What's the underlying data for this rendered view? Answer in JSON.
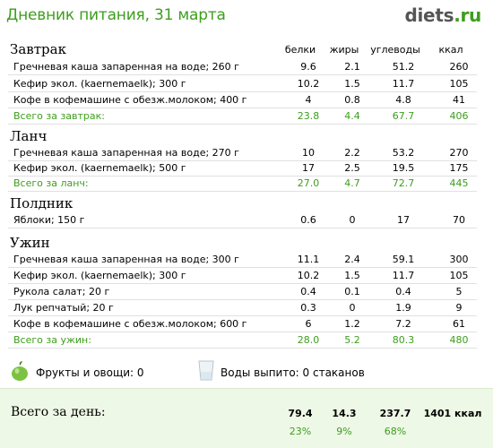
{
  "header": {
    "title": "Дневник питания, 31 марта",
    "brand_part1": "diets",
    "brand_part2": ".ru"
  },
  "columns": {
    "protein": "белки",
    "fat": "жиры",
    "carbs": "углеводы",
    "kcal": "ккал"
  },
  "meals": [
    {
      "title": "Завтрак",
      "items": [
        {
          "name": "Гречневая каша запаренная на воде; 260 г",
          "protein": "9.6",
          "fat": "2.1",
          "carbs": "51.2",
          "kcal": "260"
        },
        {
          "name": "Кефир экол. (kaernemaelk); 300 г",
          "protein": "10.2",
          "fat": "1.5",
          "carbs": "11.7",
          "kcal": "105"
        },
        {
          "name": "Кофе в кофемашине с обезж.молоком; 400 г",
          "protein": "4",
          "fat": "0.8",
          "carbs": "4.8",
          "kcal": "41"
        }
      ],
      "total": {
        "name": "Всего за завтрак:",
        "protein": "23.8",
        "fat": "4.4",
        "carbs": "67.7",
        "kcal": "406"
      }
    },
    {
      "title": "Ланч",
      "items": [
        {
          "name": "Гречневая каша запаренная на воде; 270 г",
          "protein": "10",
          "fat": "2.2",
          "carbs": "53.2",
          "kcal": "270"
        },
        {
          "name": "Кефир экол. (kaernemaelk); 500 г",
          "protein": "17",
          "fat": "2.5",
          "carbs": "19.5",
          "kcal": "175"
        }
      ],
      "total": {
        "name": "Всего за ланч:",
        "protein": "27.0",
        "fat": "4.7",
        "carbs": "72.7",
        "kcal": "445"
      }
    },
    {
      "title": "Полдник",
      "items": [
        {
          "name": "Яблоки; 150 г",
          "protein": "0.6",
          "fat": "0",
          "carbs": "17",
          "kcal": "70"
        }
      ]
    },
    {
      "title": "Ужин",
      "items": [
        {
          "name": "Гречневая каша запаренная на воде; 300 г",
          "protein": "11.1",
          "fat": "2.4",
          "carbs": "59.1",
          "kcal": "300"
        },
        {
          "name": "Кефир экол. (kaernemaelk); 300 г",
          "protein": "10.2",
          "fat": "1.5",
          "carbs": "11.7",
          "kcal": "105"
        },
        {
          "name": "Рукола салат; 20 г",
          "protein": "0.4",
          "fat": "0.1",
          "carbs": "0.4",
          "kcal": "5"
        },
        {
          "name": "Лук репчатый; 20 г",
          "protein": "0.3",
          "fat": "0",
          "carbs": "1.9",
          "kcal": "9"
        },
        {
          "name": "Кофе в кофемашине с обезж.молоком; 600 г",
          "protein": "6",
          "fat": "1.2",
          "carbs": "7.2",
          "kcal": "61"
        }
      ],
      "total": {
        "name": "Всего за ужин:",
        "protein": "28.0",
        "fat": "5.2",
        "carbs": "80.3",
        "kcal": "480"
      }
    }
  ],
  "extras": {
    "fruits": "Фрукты и овощи: 0",
    "water": "Воды выпито: 0 стаканов"
  },
  "day_total": {
    "label": "Всего за день:",
    "protein": "79.4",
    "fat": "14.3",
    "carbs": "237.7",
    "kcal": "1401 ккал",
    "protein_pct": "23%",
    "fat_pct": "9%",
    "carbs_pct": "68%"
  },
  "colors": {
    "accent_green": "#3d9e1d",
    "day_panel_bg": "#eef8e6"
  },
  "icons": {
    "fruits": "apple-icon",
    "water": "glass-icon"
  }
}
